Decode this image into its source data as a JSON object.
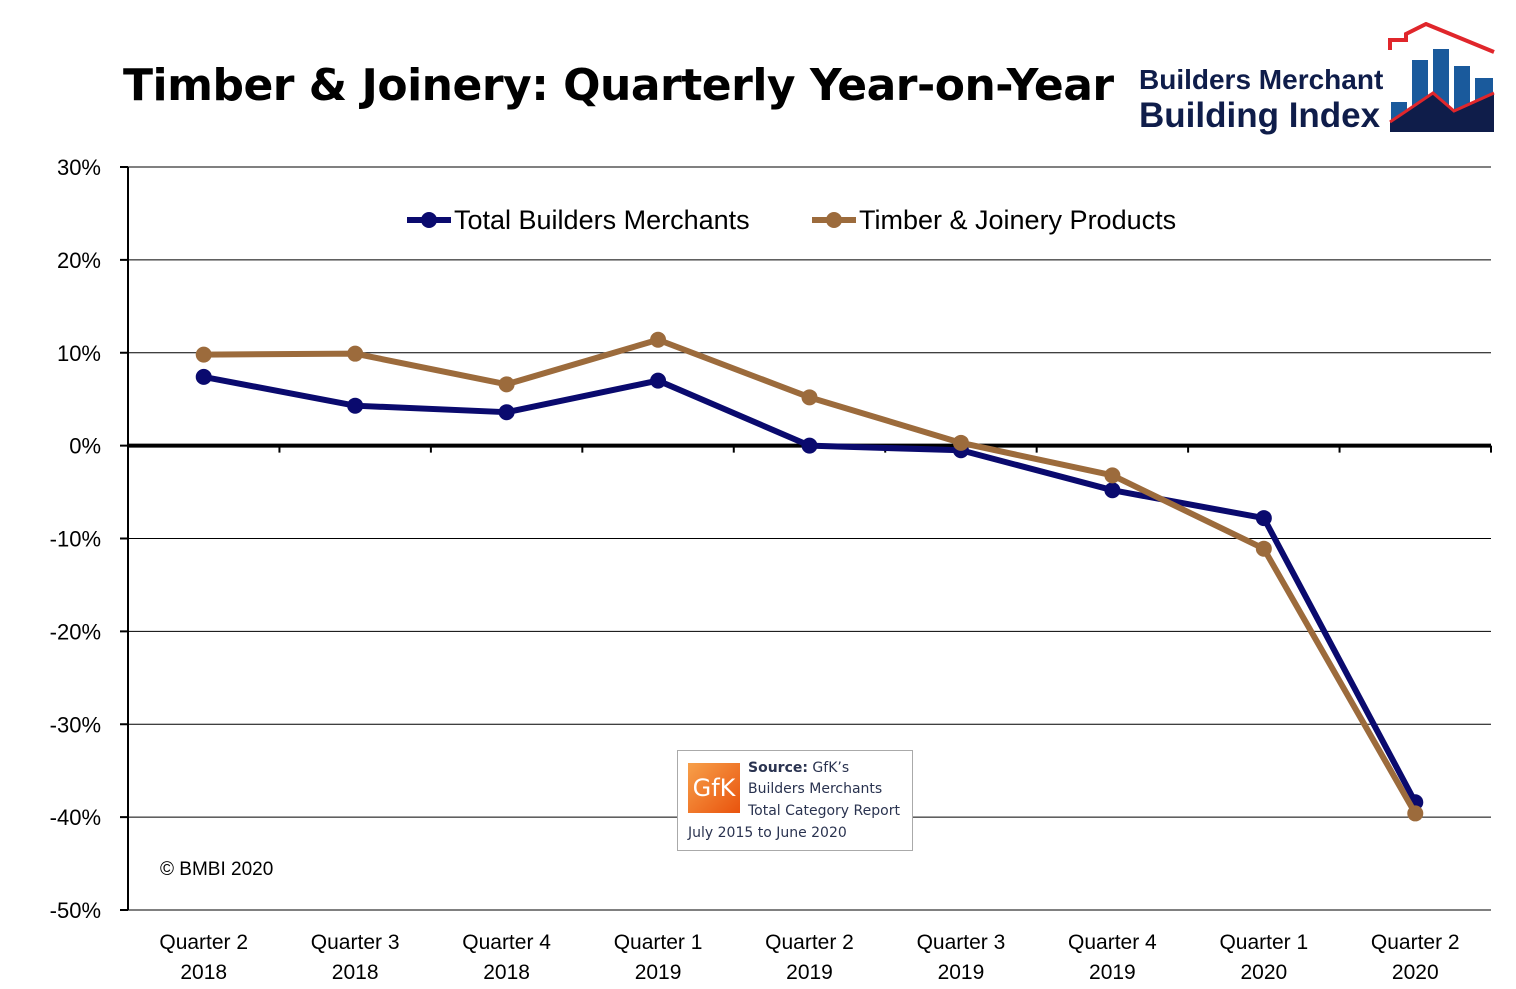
{
  "chart_data": {
    "type": "line",
    "title": "Timber & Joinery: Quarterly Year-on-Year",
    "categories": [
      [
        "Quarter 2",
        "2018"
      ],
      [
        "Quarter 3",
        "2018"
      ],
      [
        "Quarter 4",
        "2018"
      ],
      [
        "Quarter 1",
        "2019"
      ],
      [
        "Quarter 2",
        "2019"
      ],
      [
        "Quarter 3",
        "2019"
      ],
      [
        "Quarter 4",
        "2019"
      ],
      [
        "Quarter 1",
        "2020"
      ],
      [
        "Quarter 2",
        "2020"
      ]
    ],
    "series": [
      {
        "name": "Total Builders Merchants",
        "color": "#0a0a6e",
        "values": [
          7.4,
          4.3,
          3.6,
          7.0,
          0.0,
          -0.5,
          -4.8,
          -7.8,
          -38.4
        ]
      },
      {
        "name": "Timber & Joinery Products",
        "color": "#9c6b3c",
        "values": [
          9.8,
          9.9,
          6.6,
          11.4,
          5.2,
          0.3,
          -3.2,
          -11.1,
          -39.6
        ]
      }
    ],
    "ylim": [
      -50,
      30
    ],
    "yticks": [
      30,
      20,
      10,
      0,
      -10,
      -20,
      -30,
      -40,
      -50
    ],
    "ytick_labels": [
      "30%",
      "20%",
      "10%",
      "0%",
      "-10%",
      "-20%",
      "-30%",
      "-40%",
      "-50%"
    ],
    "grid": true,
    "legend": "top-center",
    "xlabel": "",
    "ylabel": ""
  },
  "logo": {
    "line1": "Builders Merchant",
    "line2": "Building Index"
  },
  "source": {
    "logo_text": "GfK",
    "label": "Source:",
    "line1": " GfK’s",
    "line2": "Builders Merchants",
    "line3": "Total Category Report",
    "line4": "July 2015 to June 2020"
  },
  "copyright": "© BMBI 2020"
}
